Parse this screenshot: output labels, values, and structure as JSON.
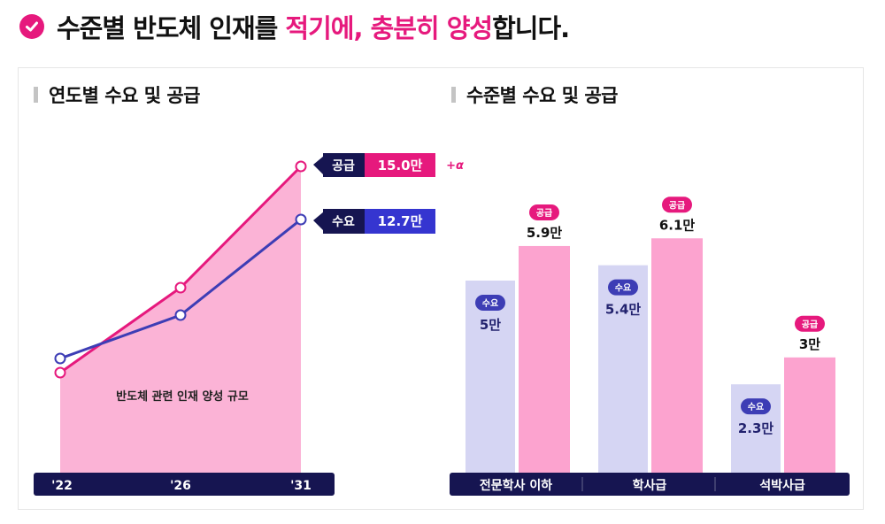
{
  "headline": {
    "part1": "수준별 반도체 인재를 ",
    "part2": "적기에, 충분히 양성",
    "part3": "합니다."
  },
  "icons": {
    "check": "check-circle-icon"
  },
  "colors": {
    "accent": "#e6197d",
    "demand": "#3d3db5",
    "supply_fill": "#fbb3d6",
    "demand_bar": "#d5d5f3",
    "supply_bar": "#fca3cf",
    "axis_bar": "#161551"
  },
  "left_chart": {
    "title": "연도별 수요 및 공급",
    "area_label": "반도체 관련 인재 양성 규모",
    "supply_tag": {
      "label": "공급",
      "value": "15.0만",
      "extra": "+α"
    },
    "demand_tag": {
      "label": "수요",
      "value": "12.7만"
    }
  },
  "right_chart": {
    "title": "수준별 수요 및 공급",
    "supply_pill": "공급",
    "demand_pill": "수요"
  },
  "chart_data": [
    {
      "type": "line",
      "title": "연도별 수요 및 공급",
      "x": [
        "'22",
        "'26",
        "'31"
      ],
      "series": [
        {
          "name": "공급",
          "values": [
            null,
            null,
            15.0
          ]
        },
        {
          "name": "수요",
          "values": [
            null,
            null,
            12.7
          ]
        }
      ],
      "unit": "만"
    },
    {
      "type": "bar",
      "title": "수준별 수요 및 공급",
      "categories": [
        "전문학사 이하",
        "학사급",
        "석박사급"
      ],
      "series": [
        {
          "name": "수요",
          "values": [
            5,
            5.4,
            2.3
          ],
          "labels": [
            "5만",
            "5.4만",
            "2.3만"
          ]
        },
        {
          "name": "공급",
          "values": [
            5.9,
            6.1,
            3
          ],
          "labels": [
            "5.9만",
            "6.1만",
            "3만"
          ]
        }
      ],
      "unit": "만"
    }
  ]
}
